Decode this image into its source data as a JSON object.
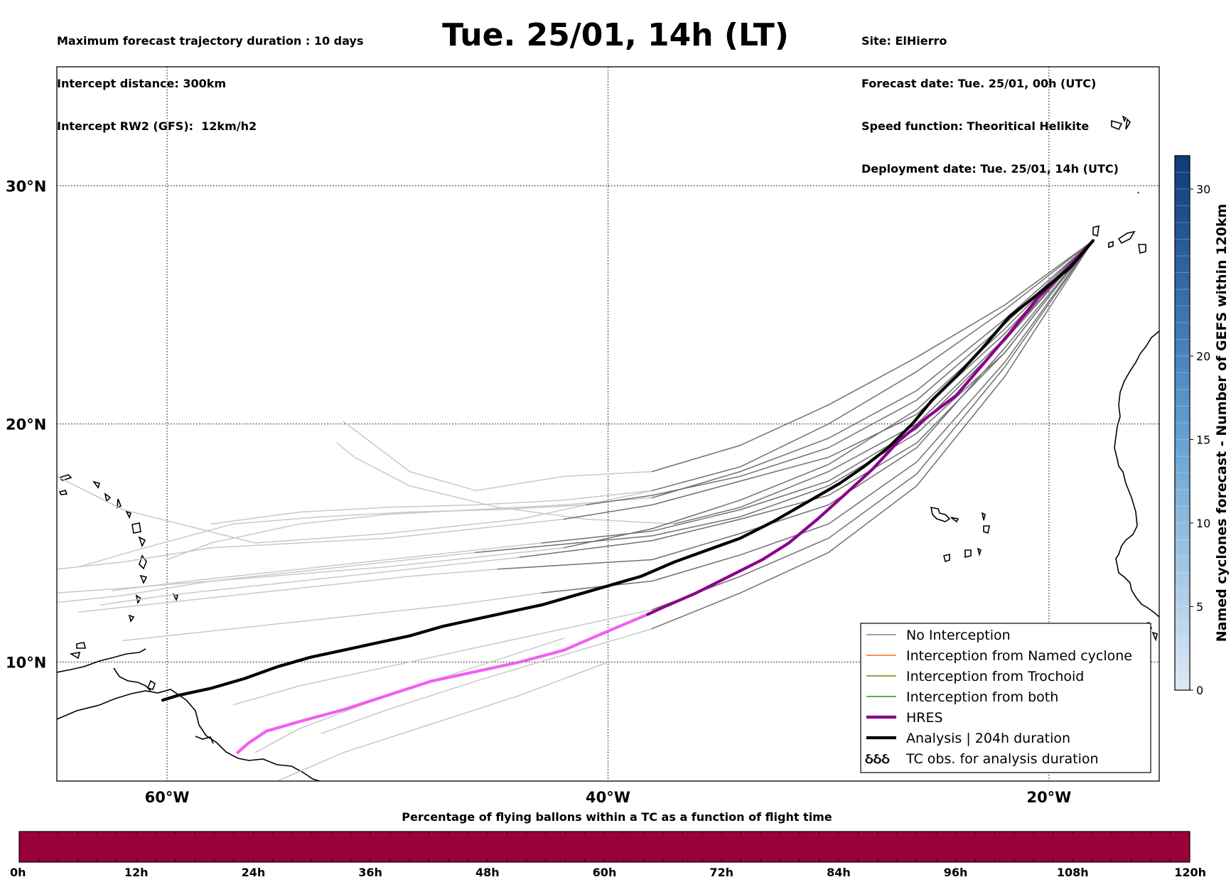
{
  "header": {
    "left_lines": [
      "Maximum forecast trajectory duration : 10 days",
      "Intercept distance: 300km",
      "Intercept RW2 (GFS):  12km/h2"
    ],
    "title": "Tue. 25/01, 14h (LT)",
    "right_lines": [
      "Site: ElHierro",
      "Forecast date: Tue. 25/01, 00h (UTC)",
      "Speed function: Theoritical Helikite",
      "Deployment date: Tue. 25/01, 14h (UTC)"
    ]
  },
  "colors": {
    "no_interception": "#808080",
    "named_cyclone": "#ff6a1a",
    "trochoid": "#8a7d00",
    "both": "#1a9a1a",
    "hres": "#8b008b",
    "hres_early": "#f060f0",
    "analysis": "#000000",
    "ensemble_faded": "#c8c8c8",
    "ensemble_dark": "#707070",
    "hbar": "#9a003a"
  },
  "chart_data": {
    "type": "line",
    "title": "Tue. 25/01, 14h (LT)",
    "xlabel": "",
    "ylabel": "",
    "xlim": [
      -65,
      -15
    ],
    "ylim": [
      5,
      35
    ],
    "grid": true,
    "legend_position": "lower-right",
    "x_ticks": [
      {
        "value": -60,
        "label": "60°W"
      },
      {
        "value": -40,
        "label": "40°W"
      },
      {
        "value": -20,
        "label": "20°W"
      }
    ],
    "y_ticks": [
      {
        "value": 10,
        "label": "10°N"
      },
      {
        "value": 20,
        "label": "20°N"
      },
      {
        "value": 30,
        "label": "30°N"
      }
    ],
    "origin": {
      "x": -18.0,
      "y": 27.7
    },
    "legend": [
      {
        "label": "No Interception",
        "style": "no_interception"
      },
      {
        "label": "Interception from Named cyclone",
        "style": "named_cyclone"
      },
      {
        "label": "Interception from Trochoid",
        "style": "trochoid"
      },
      {
        "label": "Interception from both",
        "style": "both"
      },
      {
        "label": "HRES",
        "style": "hres"
      },
      {
        "label": "Analysis | 204h duration",
        "style": "analysis"
      },
      {
        "label": "TC obs. for analysis duration",
        "style": "tc_obs",
        "glyph": "ઠઠઠ"
      }
    ],
    "series": [
      {
        "name": "Analysis | 204h duration",
        "style": "analysis",
        "x": [
          -18.0,
          -19.0,
          -20.3,
          -21.8,
          -23.0,
          -24.2,
          -25.3,
          -26.2,
          -27.3,
          -28.4,
          -29.5,
          -31.0,
          -32.5,
          -34.0,
          -35.5,
          -37.0,
          -38.5,
          -40.0,
          -41.5,
          -43.0,
          -44.5,
          -46.0,
          -47.5,
          -49.0,
          -50.5,
          -52.0,
          -53.5,
          -55.0,
          -56.5,
          -58.0,
          -59.5,
          -60.2
        ],
        "y": [
          27.7,
          26.6,
          25.6,
          24.5,
          23.2,
          22.0,
          21.0,
          20.0,
          19.0,
          18.2,
          17.5,
          16.7,
          15.9,
          15.2,
          14.7,
          14.2,
          13.6,
          13.2,
          12.8,
          12.4,
          12.1,
          11.8,
          11.5,
          11.1,
          10.8,
          10.5,
          10.2,
          9.8,
          9.3,
          8.9,
          8.6,
          8.4
        ]
      },
      {
        "name": "HRES",
        "style": "hres",
        "x": [
          -18.0,
          -19.2,
          -20.5,
          -21.8,
          -23.0,
          -24.2,
          -25.5,
          -26.8,
          -28.0,
          -29.3,
          -30.5,
          -31.8,
          -33.0,
          -34.5,
          -36.0,
          -37.5,
          -38.2
        ],
        "y": [
          27.7,
          26.5,
          25.3,
          23.8,
          22.5,
          21.2,
          20.3,
          19.3,
          18.1,
          17.0,
          16.0,
          15.0,
          14.3,
          13.6,
          12.9,
          12.3,
          12.0
        ]
      },
      {
        "name": "HRES (early)",
        "style": "hres_early",
        "x": [
          -38.2,
          -40.0,
          -42.0,
          -44.0,
          -46.0,
          -48.0,
          -50.0,
          -52.0,
          -54.0,
          -55.5,
          -56.3,
          -56.8
        ],
        "y": [
          12.0,
          11.3,
          10.5,
          10.0,
          9.6,
          9.2,
          8.6,
          8.0,
          7.5,
          7.1,
          6.6,
          6.2
        ]
      },
      {
        "name": "",
        "style": "ensemble_dark",
        "x": [
          -18.0,
          -22.0,
          -26.0,
          -30.0,
          -34.0,
          -38.0,
          -42.0
        ],
        "y": [
          27.7,
          24.0,
          20.6,
          18.3,
          16.8,
          15.6,
          14.8
        ]
      },
      {
        "name": "",
        "style": "ensemble_dark",
        "x": [
          -18.0,
          -22.0,
          -26.0,
          -30.0,
          -34.0,
          -38.0,
          -43.0
        ],
        "y": [
          27.7,
          23.5,
          19.8,
          17.6,
          16.4,
          15.5,
          15.0
        ]
      },
      {
        "name": "",
        "style": "ensemble_dark",
        "x": [
          -18.0,
          -22.0,
          -26.0,
          -30.0,
          -34.0,
          -38.0,
          -44.0
        ],
        "y": [
          27.7,
          23.0,
          19.2,
          17.0,
          16.0,
          15.1,
          14.4
        ]
      },
      {
        "name": "",
        "style": "ensemble_dark",
        "x": [
          -18.0,
          -22.0,
          -26.0,
          -30.0,
          -34.0,
          -38.0
        ],
        "y": [
          27.7,
          24.4,
          21.4,
          19.4,
          18.0,
          16.9
        ]
      },
      {
        "name": "",
        "style": "ensemble_dark",
        "x": [
          -18.0,
          -22.0,
          -26.0,
          -30.0,
          -34.0,
          -38.0
        ],
        "y": [
          27.7,
          24.8,
          22.2,
          20.0,
          18.2,
          17.2
        ]
      },
      {
        "name": "",
        "style": "ensemble_dark",
        "x": [
          -18.0,
          -22.0,
          -26.0,
          -30.0,
          -34.0,
          -38.0,
          -45.0
        ],
        "y": [
          27.7,
          23.2,
          19.0,
          16.6,
          15.4,
          14.3,
          13.9
        ]
      },
      {
        "name": "",
        "style": "ensemble_dark",
        "x": [
          -18.0,
          -22.0,
          -26.0,
          -30.0,
          -34.0,
          -38.0,
          -43.0
        ],
        "y": [
          27.7,
          22.6,
          18.4,
          15.8,
          14.5,
          13.4,
          12.9
        ]
      },
      {
        "name": "",
        "style": "ensemble_dark",
        "x": [
          -18.0,
          -22.0,
          -26.0,
          -30.0,
          -34.0,
          -38.0
        ],
        "y": [
          27.7,
          22.4,
          17.9,
          15.2,
          13.6,
          12.2
        ]
      },
      {
        "name": "",
        "style": "ensemble_dark",
        "x": [
          -18.0,
          -22.0,
          -26.0,
          -30.0,
          -34.0,
          -38.0
        ],
        "y": [
          27.7,
          22.0,
          17.4,
          14.6,
          12.9,
          11.4
        ]
      },
      {
        "name": "",
        "style": "ensemble_dark",
        "x": [
          -18.0,
          -22.0,
          -26.0,
          -30.0,
          -34.0,
          -38.0,
          -42.0
        ],
        "y": [
          27.7,
          23.8,
          20.4,
          18.6,
          17.6,
          16.6,
          16.0
        ]
      },
      {
        "name": "",
        "style": "ensemble_dark",
        "x": [
          -18.0,
          -22.0,
          -26.0,
          -30.0,
          -34.0,
          -38.0,
          -41.0
        ],
        "y": [
          27.7,
          24.2,
          21.0,
          19.0,
          17.8,
          17.0,
          16.6
        ]
      },
      {
        "name": "",
        "style": "ensemble_dark",
        "x": [
          -18.0,
          -22.0,
          -26.0,
          -30.0,
          -34.0,
          -38.0
        ],
        "y": [
          27.7,
          25.0,
          22.8,
          20.8,
          19.1,
          18.0
        ]
      },
      {
        "name": "",
        "style": "ensemble_dark",
        "x": [
          -18.0,
          -22.0,
          -26.0,
          -30.0,
          -34.0,
          -37.0
        ],
        "y": [
          27.7,
          23.6,
          20.0,
          18.0,
          16.5,
          15.8
        ]
      },
      {
        "name": "",
        "style": "ensemble_dark",
        "x": [
          -18.0,
          -22.0,
          -26.0,
          -30.0,
          -34.0,
          -38.0,
          -46.0
        ],
        "y": [
          27.7,
          23.0,
          19.6,
          17.4,
          16.1,
          15.3,
          14.6
        ]
      },
      {
        "name": "",
        "style": "ensemble_faded",
        "x": [
          -42.0,
          -46.0,
          -50.0,
          -54.0,
          -58.0,
          -62.0,
          -65.0
        ],
        "y": [
          14.8,
          14.4,
          14.0,
          13.7,
          13.4,
          13.1,
          12.9
        ]
      },
      {
        "name": "",
        "style": "ensemble_faded",
        "x": [
          -43.0,
          -47.0,
          -51.0,
          -55.0,
          -59.0,
          -62.5
        ],
        "y": [
          15.0,
          14.6,
          14.2,
          13.8,
          13.4,
          13.0
        ]
      },
      {
        "name": "",
        "style": "ensemble_faded",
        "x": [
          -44.0,
          -48.0,
          -52.0,
          -56.0,
          -60.0,
          -63.0
        ],
        "y": [
          14.4,
          14.0,
          13.6,
          13.2,
          12.8,
          12.4
        ]
      },
      {
        "name": "",
        "style": "ensemble_faded",
        "x": [
          -38.0,
          -42.0,
          -46.0,
          -50.0,
          -54.0,
          -58.0,
          -60.0
        ],
        "y": [
          16.9,
          16.6,
          16.4,
          16.2,
          15.8,
          15.0,
          14.3
        ]
      },
      {
        "name": "",
        "style": "ensemble_faded",
        "x": [
          -38.0,
          -42.0,
          -46.0,
          -50.0,
          -54.0,
          -58.0
        ],
        "y": [
          17.2,
          16.8,
          16.6,
          16.5,
          16.3,
          15.8
        ]
      },
      {
        "name": "",
        "style": "ensemble_faded",
        "x": [
          -45.0,
          -49.0,
          -53.0,
          -57.0,
          -61.0,
          -64.0
        ],
        "y": [
          13.9,
          13.6,
          13.2,
          12.8,
          12.4,
          12.1
        ]
      },
      {
        "name": "",
        "style": "ensemble_faded",
        "x": [
          -43.0,
          -47.0,
          -51.0,
          -55.0,
          -59.0,
          -62.0
        ],
        "y": [
          12.9,
          12.4,
          12.0,
          11.6,
          11.2,
          10.9
        ]
      },
      {
        "name": "",
        "style": "ensemble_faded",
        "x": [
          -38.0,
          -42.0,
          -46.0,
          -50.0,
          -54.0,
          -57.0
        ],
        "y": [
          12.2,
          11.4,
          10.6,
          9.8,
          9.0,
          8.2
        ]
      },
      {
        "name": "",
        "style": "ensemble_faded",
        "x": [
          -38.0,
          -42.0,
          -46.0,
          -50.0,
          -53.0
        ],
        "y": [
          11.4,
          10.3,
          9.2,
          8.0,
          7.0
        ]
      },
      {
        "name": "",
        "style": "ensemble_faded",
        "x": [
          -42.0,
          -46.0,
          -50.0,
          -54.0,
          -58.0,
          -62.0,
          -65.0
        ],
        "y": [
          16.0,
          15.6,
          15.2,
          15.0,
          14.8,
          14.2,
          13.9
        ]
      },
      {
        "name": "",
        "style": "ensemble_faded",
        "x": [
          -41.0,
          -45.0,
          -49.0,
          -53.0,
          -57.0,
          -61.0,
          -64.0
        ],
        "y": [
          16.6,
          16.4,
          16.3,
          16.1,
          15.8,
          14.8,
          14.0
        ]
      },
      {
        "name": "",
        "style": "ensemble_faded",
        "x": [
          -38.0,
          -42.0,
          -46.0,
          -49.0,
          -51.0,
          -52.0
        ],
        "y": [
          18.0,
          17.8,
          17.2,
          18.0,
          19.4,
          20.1
        ]
      },
      {
        "name": "",
        "style": "ensemble_faded",
        "x": [
          -37.0,
          -41.0,
          -45.0,
          -49.0,
          -51.5,
          -52.3
        ],
        "y": [
          15.8,
          16.0,
          16.5,
          17.4,
          18.6,
          19.2
        ]
      },
      {
        "name": "",
        "style": "ensemble_faded",
        "x": [
          -46.0,
          -50.0,
          -54.0,
          -58.0,
          -62.0,
          -65.0
        ],
        "y": [
          14.6,
          14.2,
          13.8,
          13.4,
          12.8,
          12.5
        ]
      },
      {
        "name": "",
        "style": "ensemble_faded",
        "x": [
          -38.0,
          -44.0,
          -50.0,
          -56.0,
          -62.0,
          -65.0
        ],
        "y": [
          17.2,
          16.0,
          15.4,
          15.0,
          16.4,
          17.8
        ]
      },
      {
        "name": "",
        "style": "ensemble_faded",
        "x": [
          -40.0,
          -44.0,
          -48.0,
          -52.0,
          -55.0
        ],
        "y": [
          10.0,
          8.6,
          7.4,
          6.2,
          5.0
        ]
      },
      {
        "name": "",
        "style": "ensemble_faded",
        "x": [
          -42.0,
          -46.0,
          -50.0,
          -54.0,
          -56.0
        ],
        "y": [
          11.0,
          9.8,
          8.6,
          7.2,
          6.2
        ]
      }
    ]
  },
  "colorbar_vertical": {
    "label": "Named cyclones forecast - Number of GEFS within 120km",
    "ticks": [
      0,
      5,
      10,
      15,
      20,
      30
    ],
    "min": 0,
    "max": 32
  },
  "colorbar_horizontal": {
    "title": "Percentage of flying ballons within a TC as a function of flight time",
    "ticks": [
      "0h",
      "12h",
      "24h",
      "36h",
      "48h",
      "60h",
      "72h",
      "84h",
      "96h",
      "108h",
      "120h"
    ]
  }
}
